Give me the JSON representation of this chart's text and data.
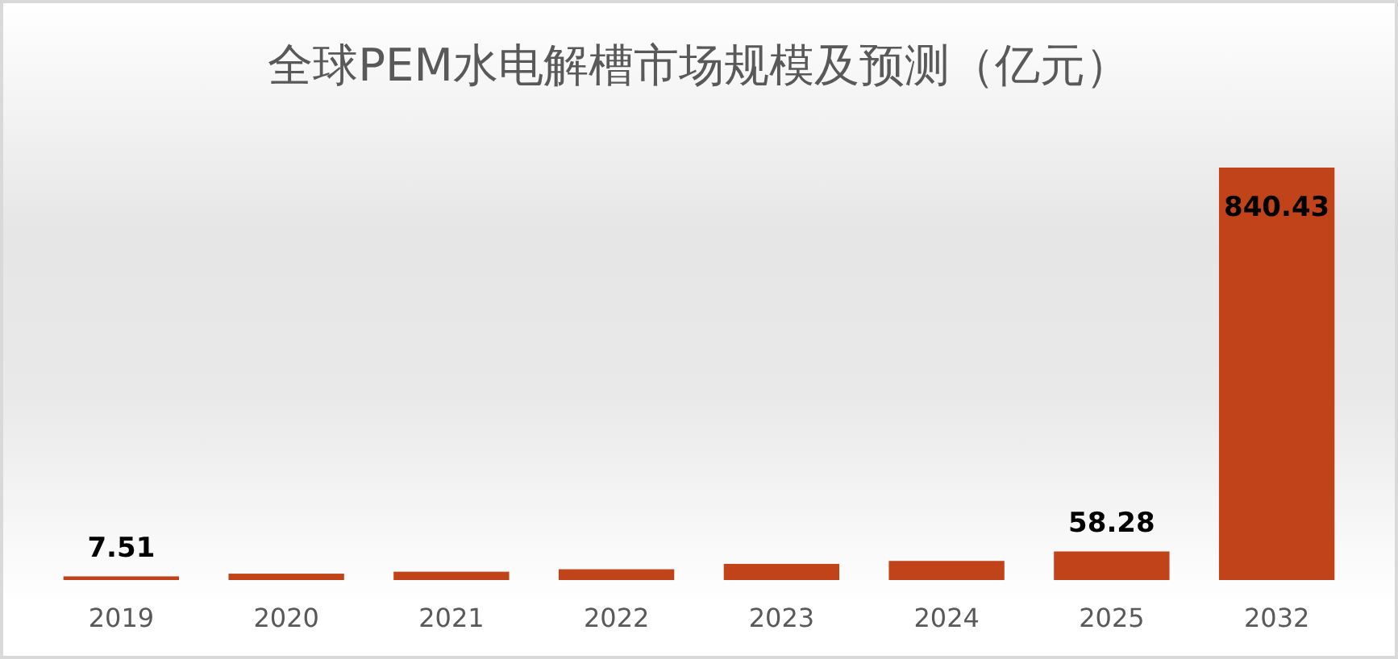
{
  "chart_data": {
    "type": "bar",
    "title": "全球PEM水电解槽市场规模及预测（亿元）",
    "categories": [
      "2019",
      "2020",
      "2021",
      "2022",
      "2023",
      "2024",
      "2025",
      "2032"
    ],
    "values": [
      7.51,
      13,
      17,
      22,
      33,
      39,
      58.28,
      840.43
    ],
    "color": "#c1431a",
    "value_labels": [
      "7.51",
      null,
      null,
      null,
      null,
      null,
      "58.28",
      "840.43"
    ]
  }
}
